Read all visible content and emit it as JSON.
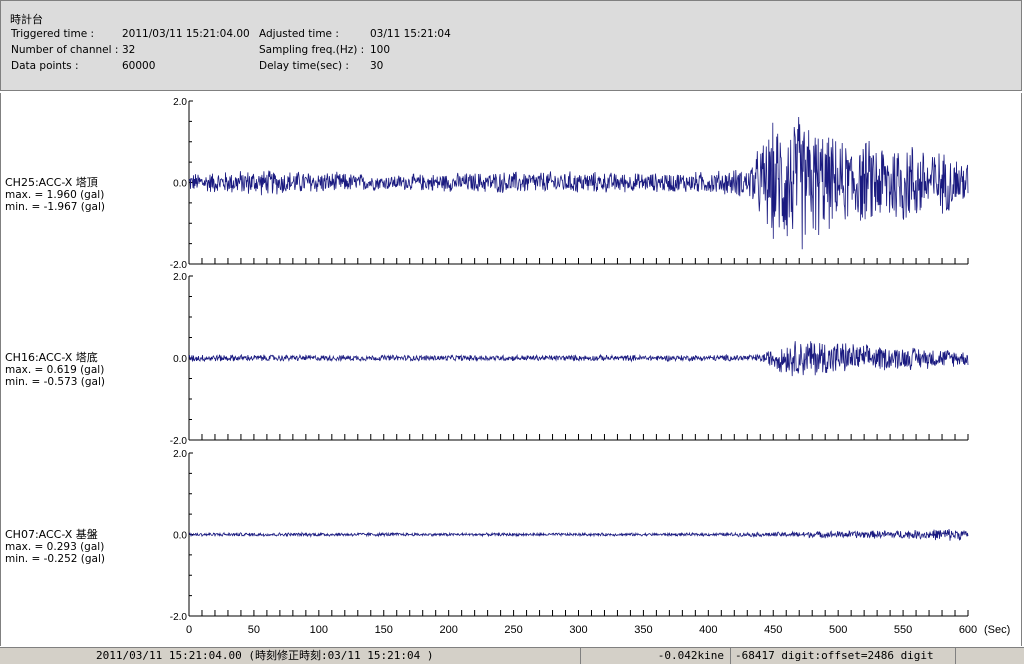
{
  "header": {
    "title": "時計台",
    "rows": [
      {
        "label": "Triggered time :",
        "value": "2011/03/11 15:21:04.00",
        "label2": "Adjusted time :",
        "value2": "03/11 15:21:04"
      },
      {
        "label": "Number of channel :",
        "value": "32",
        "label2": "Sampling freq.(Hz) :",
        "value2": "100"
      },
      {
        "label": "Data points :",
        "value": "60000",
        "label2": "Delay time(sec) :",
        "value2": "30"
      }
    ]
  },
  "channels": [
    {
      "name": "CH25:ACC-X 塔頂",
      "max": "max. = 1.960 (gal)",
      "min": "min. = -1.967 (gal)"
    },
    {
      "name": "CH16:ACC-X 塔底",
      "max": "max. = 0.619 (gal)",
      "min": "min. = -0.573 (gal)"
    },
    {
      "name": "CH07:ACC-X 基盤",
      "max": "max. = 0.293 (gal)",
      "min": "min. = -0.252 (gal)"
    }
  ],
  "status": {
    "time": "2011/03/11 15:21:04.00  (時刻修正時刻:03/11 15:21:04  )",
    "kine": "-0.042kine",
    "digit": "-68417 digit:offset=2486 digit"
  },
  "colors": {
    "trace": "#1a1a80",
    "axis": "#000000"
  },
  "chart_data": {
    "type": "line",
    "xlabel": "(Sec)",
    "xlim": [
      0,
      600
    ],
    "xticks": [
      0,
      50,
      100,
      150,
      200,
      250,
      300,
      350,
      400,
      450,
      500,
      550,
      600
    ],
    "ylim": [
      -2.0,
      2.0
    ],
    "yticks": [
      "2.0",
      "0.0",
      "-2.0"
    ],
    "series": [
      {
        "name": "CH25:ACC-X 塔頂",
        "max": 1.96,
        "min": -1.967,
        "envelope": [
          [
            0,
            0.25
          ],
          [
            50,
            0.35
          ],
          [
            100,
            0.3
          ],
          [
            150,
            0.2
          ],
          [
            200,
            0.25
          ],
          [
            250,
            0.3
          ],
          [
            300,
            0.3
          ],
          [
            350,
            0.25
          ],
          [
            400,
            0.3
          ],
          [
            430,
            0.4
          ],
          [
            450,
            1.6
          ],
          [
            470,
            1.9
          ],
          [
            500,
            1.1
          ],
          [
            550,
            1.2
          ],
          [
            600,
            0.6
          ]
        ]
      },
      {
        "name": "CH16:ACC-X 塔底",
        "max": 0.619,
        "min": -0.573,
        "envelope": [
          [
            0,
            0.1
          ],
          [
            100,
            0.08
          ],
          [
            200,
            0.08
          ],
          [
            300,
            0.08
          ],
          [
            400,
            0.08
          ],
          [
            440,
            0.1
          ],
          [
            460,
            0.45
          ],
          [
            480,
            0.55
          ],
          [
            520,
            0.35
          ],
          [
            560,
            0.3
          ],
          [
            600,
            0.2
          ]
        ]
      },
      {
        "name": "CH07:ACC-X 基盤",
        "max": 0.293,
        "min": -0.252,
        "envelope": [
          [
            0,
            0.05
          ],
          [
            100,
            0.05
          ],
          [
            200,
            0.04
          ],
          [
            300,
            0.04
          ],
          [
            400,
            0.04
          ],
          [
            440,
            0.06
          ],
          [
            500,
            0.1
          ],
          [
            560,
            0.12
          ],
          [
            590,
            0.18
          ],
          [
            600,
            0.1
          ]
        ]
      }
    ]
  }
}
